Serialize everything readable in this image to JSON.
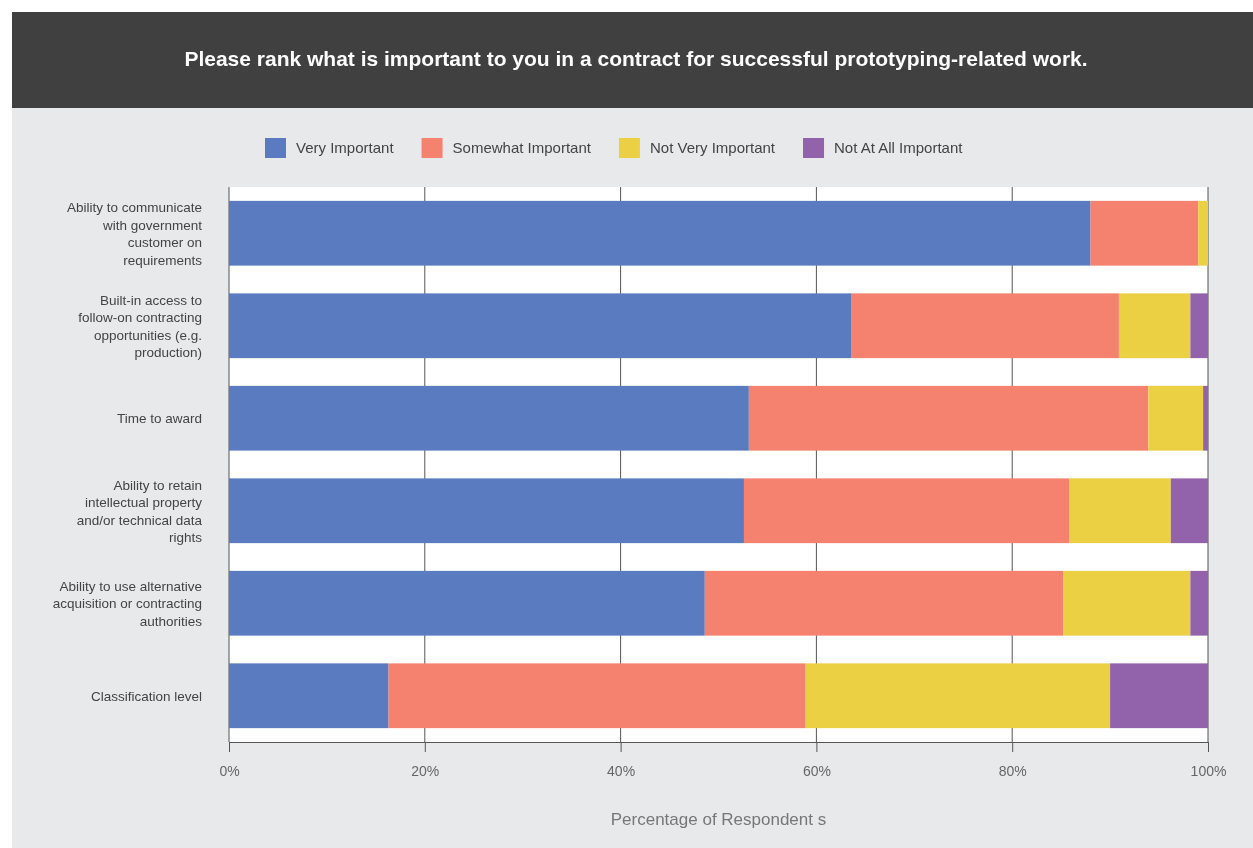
{
  "chart_data": {
    "type": "bar",
    "orientation": "horizontal",
    "stacked": true,
    "title": "Please rank what is important to you in a contract for successful prototyping-related work.",
    "xlabel": "Percentage of Respondent s",
    "categories": [
      "Ability to communicate with government customer on requirements",
      "Built-in access to follow-on contracting opportunities (e.g. production)",
      "Time to award",
      "Ability to retain intellectual property and/or technical data rights",
      "Ability to use alternative acquisition or contracting authorities",
      "Classification level"
    ],
    "series": [
      {
        "name": "Very Important",
        "color": "#5b7bc0",
        "values": [
          88.0,
          63.6,
          53.1,
          52.6,
          48.6,
          16.3
        ]
      },
      {
        "name": "Somewhat Important",
        "color": "#f4826f",
        "values": [
          11.0,
          27.3,
          40.8,
          33.2,
          36.6,
          42.6
        ]
      },
      {
        "name": "Not Very Important",
        "color": "#ecd044",
        "values": [
          1.0,
          7.3,
          5.6,
          10.4,
          13.0,
          31.1
        ]
      },
      {
        "name": "Not At All Important",
        "color": "#9263ab",
        "values": [
          0,
          1.8,
          0.5,
          3.8,
          1.8,
          10.0
        ]
      }
    ],
    "xlim": [
      0,
      100
    ],
    "xticks": [
      {
        "value": 0,
        "label": "0%"
      },
      {
        "value": 20,
        "label": "20%"
      },
      {
        "value": 40,
        "label": "40%"
      },
      {
        "value": 60,
        "label": "60%"
      },
      {
        "value": 80,
        "label": "80%"
      },
      {
        "value": 100,
        "label": "100%"
      }
    ],
    "grid": "x",
    "legend": "top"
  }
}
